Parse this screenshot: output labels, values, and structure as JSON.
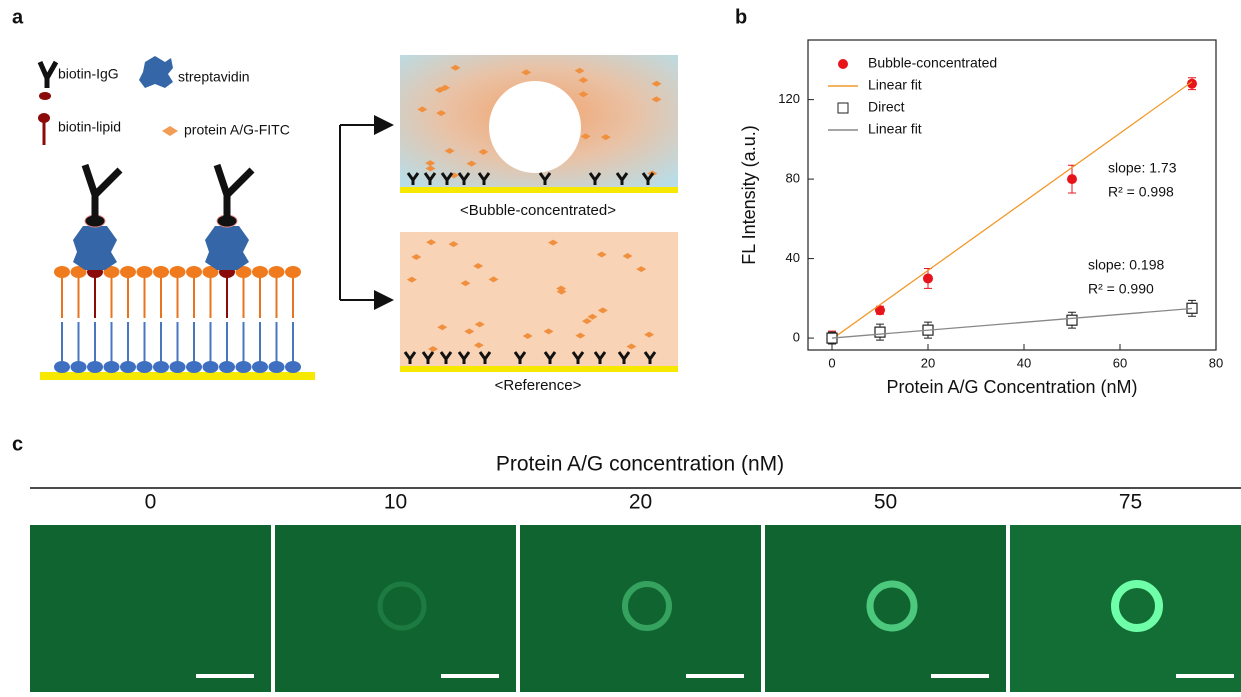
{
  "panel_labels": [
    "a",
    "b",
    "c"
  ],
  "diagram": {
    "legend": [
      "biotin-IgG",
      "streptavidin",
      "biotin-lipid",
      "protein A/G-FITC"
    ],
    "captions": [
      "<Bubble-concentrated>",
      "<Reference>"
    ]
  },
  "chart_data": {
    "type": "scatter",
    "x_label": "Protein A/G Concentration (nM)",
    "y_label": "FL Intensity (a.u.)",
    "xlim": [
      -5,
      80
    ],
    "ylim": [
      -6,
      150
    ],
    "xticks": [
      0,
      20,
      40,
      60,
      80
    ],
    "yticks": [
      0,
      40,
      80,
      120
    ],
    "legend": "upper left",
    "series": [
      {
        "name": "Bubble-concentrated",
        "color": "#e8141b",
        "marker": "circle",
        "x": [
          0,
          10,
          20,
          50,
          75
        ],
        "values": [
          0.5,
          14,
          30,
          80,
          128
        ],
        "errors": [
          3,
          2,
          5,
          7,
          3
        ]
      },
      {
        "name": "Linear fit",
        "color": "#f39a2d",
        "marker": "none",
        "x": [
          0,
          75
        ],
        "values": [
          -0.5,
          129
        ]
      },
      {
        "name": "Direct",
        "color": "#222222",
        "marker": "square",
        "x": [
          0,
          10,
          20,
          50,
          75
        ],
        "values": [
          0,
          3,
          4,
          9,
          15
        ],
        "errors": [
          3,
          4,
          4,
          4,
          4
        ]
      },
      {
        "name": "Linear fit",
        "color": "#888888",
        "marker": "none",
        "x": [
          0,
          75
        ],
        "values": [
          0,
          14.9
        ]
      }
    ],
    "annotations": [
      "slope: 1.73",
      "R² = 0.998",
      "slope: 0.198",
      "R² = 0.990"
    ]
  },
  "images": {
    "title": "Protein A/G concentration (nM)",
    "labels": [
      "0",
      "10",
      "20",
      "50",
      "75"
    ]
  }
}
